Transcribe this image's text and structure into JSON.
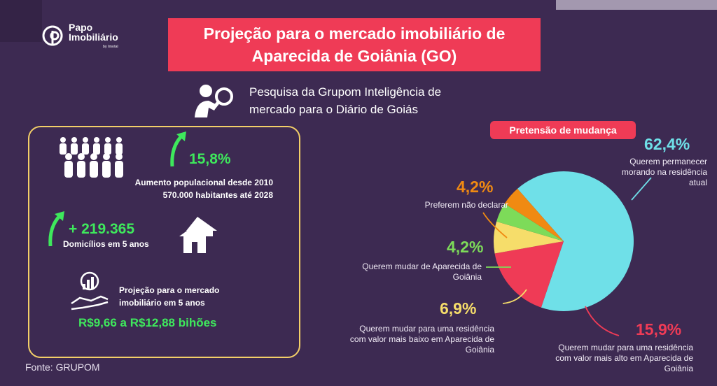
{
  "logo": {
    "line1": "Papo",
    "line2": "Imobiliário",
    "sub": "by Imotal"
  },
  "title": {
    "line1": "Projeção para o mercado imobiliário de",
    "line2": "Aparecida de Goiânia (GO)"
  },
  "research": {
    "line1": "Pesquisa da Grupom Inteligência de",
    "line2": "mercado para o Diário de Goiás"
  },
  "population": {
    "value": "15,8%",
    "line1": "Aumento populacional desde 2010",
    "line2": "570.000 habitantes até 2028"
  },
  "households": {
    "value": "+ 219.365",
    "label": "Domicílios em 5 anos"
  },
  "projection": {
    "line1": "Projeção para o mercado",
    "line2": "imobiliário em 5 anos",
    "value": "R$9,66 a R$12,88 bihões"
  },
  "pie": {
    "title": "Pretensão de mudança",
    "slices": [
      {
        "value": 62.4,
        "pct": "62,4%",
        "label_lines": [
          "Querem permanecer",
          "morando na residência",
          "atual"
        ],
        "color": "#6fe0e8",
        "pct_color": "#6fe0e8"
      },
      {
        "value": 15.9,
        "pct": "15,9%",
        "label_lines": [
          "Querem mudar para uma residência",
          "com valor mais alto em Aparecida de",
          "Goiânia"
        ],
        "color": "#ef3b56",
        "pct_color": "#ef3b56"
      },
      {
        "value": 6.9,
        "pct": "6,9%",
        "label_lines": [
          "Querem mudar para uma residência",
          "com valor mais baixo em Aparecida de",
          "Goiânia"
        ],
        "color": "#f6dd6a",
        "pct_color": "#f6dd6a"
      },
      {
        "value": 4.2,
        "pct": "4,2%",
        "label_lines": [
          "Querem mudar de Aparecida de",
          "Goiânia"
        ],
        "color": "#7ddb59",
        "pct_color": "#7ddb59"
      },
      {
        "value": 4.2,
        "pct": "4,2%",
        "label_lines": [
          "Preferem não declarar"
        ],
        "color": "#f08a12",
        "pct_color": "#f08a12"
      }
    ]
  },
  "source": "Fonte:  GRUPOM"
}
